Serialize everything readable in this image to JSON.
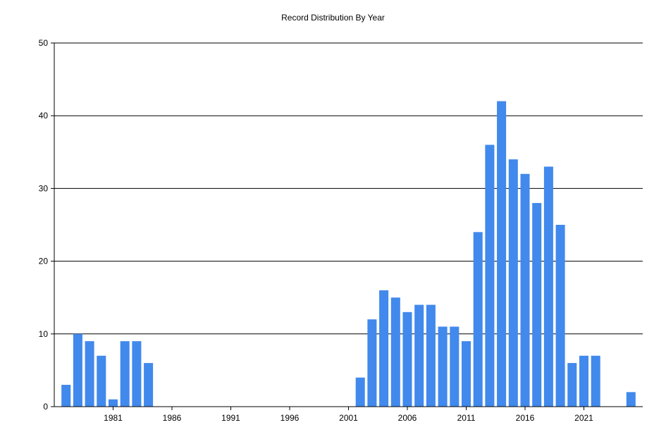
{
  "chart_data": {
    "type": "bar",
    "title": "Record Distribution By Year",
    "xlabel": "",
    "ylabel": "",
    "ylim": [
      0,
      50
    ],
    "xlim": [
      1976,
      2026
    ],
    "yticks": [
      0,
      10,
      20,
      30,
      40,
      50
    ],
    "xticks": [
      1981,
      1986,
      1991,
      1996,
      2001,
      2006,
      2011,
      2016,
      2021
    ],
    "grid": true,
    "bar_color": "#4189ec",
    "x": [
      1977,
      1978,
      1979,
      1980,
      1981,
      1982,
      1983,
      1984,
      2002,
      2003,
      2004,
      2005,
      2006,
      2007,
      2008,
      2009,
      2010,
      2011,
      2012,
      2013,
      2014,
      2015,
      2016,
      2017,
      2018,
      2019,
      2020,
      2021,
      2022,
      2025
    ],
    "values": [
      3,
      10,
      9,
      7,
      1,
      9,
      9,
      6,
      4,
      12,
      16,
      15,
      13,
      14,
      14,
      11,
      11,
      9,
      24,
      36,
      42,
      34,
      32,
      28,
      33,
      25,
      6,
      7,
      7,
      2
    ]
  }
}
